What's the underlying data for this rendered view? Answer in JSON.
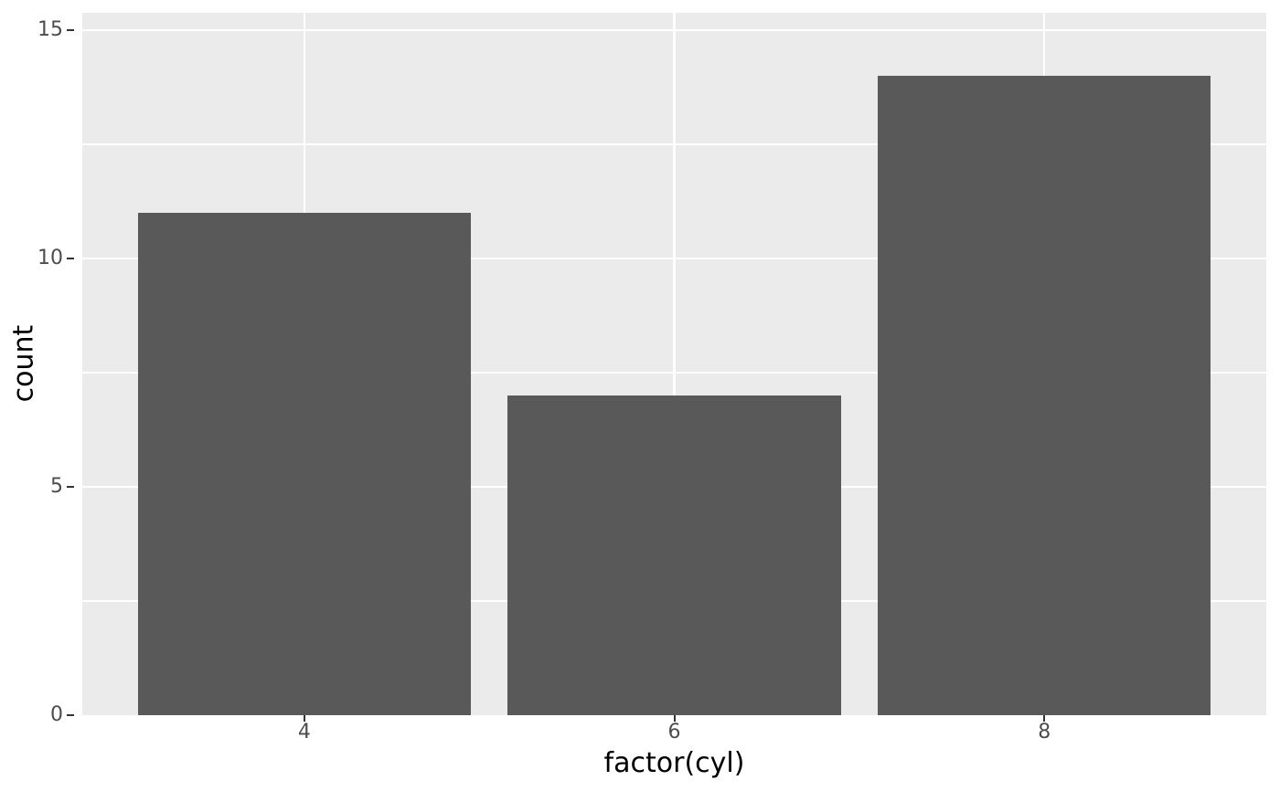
{
  "figure": {
    "background": "#FFFFFF",
    "panel_bg": "#EBEBEB",
    "grid_color": "#FFFFFF",
    "bar_color": "#595959",
    "tick_mark_color": "#333333",
    "tick_label_color": "#4D4D4D",
    "axis_title_color": "#000000"
  },
  "chart_data": {
    "type": "bar",
    "categories": [
      "4",
      "6",
      "8"
    ],
    "values": [
      11,
      7,
      14
    ],
    "title": "",
    "xlabel": "factor(cyl)",
    "ylabel": "count",
    "ylim": [
      0,
      15.38
    ],
    "y_major_ticks": [
      0,
      5,
      10,
      15
    ],
    "y_minor_gridlines": [
      2.5,
      7.5,
      12.5
    ],
    "grid": true,
    "legend_position": "none",
    "bar_width_fraction": 0.9,
    "theme": "ggplot2-grey"
  }
}
